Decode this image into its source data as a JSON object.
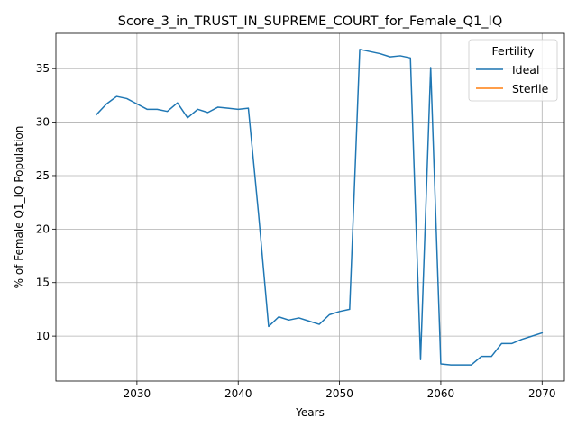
{
  "chart_data": {
    "type": "line",
    "title": "Score_3_in_TRUST_IN_SUPREME_COURT_for_Female_Q1_IQ",
    "xlabel": "Years",
    "ylabel": "% of Female Q1_IQ Population",
    "xlim": [
      2022,
      2072.2
    ],
    "ylim": [
      5.8,
      38.3
    ],
    "xticks": [
      2030,
      2040,
      2050,
      2060,
      2070
    ],
    "yticks": [
      10,
      15,
      20,
      25,
      30,
      35
    ],
    "grid": true,
    "legend": {
      "title": "Fertility",
      "placement": "top-right"
    },
    "series": [
      {
        "name": "Ideal",
        "color": "#1f77b4",
        "x": [
          2026,
          2027,
          2028,
          2029,
          2030,
          2031,
          2032,
          2033,
          2034,
          2035,
          2036,
          2037,
          2038,
          2039,
          2040,
          2041,
          2042,
          2043,
          2044,
          2045,
          2046,
          2047,
          2048,
          2049,
          2050,
          2051,
          2052,
          2053,
          2054,
          2055,
          2056,
          2057,
          2058,
          2059,
          2060,
          2061,
          2062,
          2063,
          2064,
          2065,
          2066,
          2067,
          2068,
          2069,
          2070
        ],
        "y": [
          30.7,
          31.7,
          32.4,
          32.2,
          31.7,
          31.2,
          31.2,
          31.0,
          31.8,
          30.4,
          31.2,
          30.9,
          31.4,
          31.3,
          31.2,
          31.3,
          21.5,
          10.9,
          11.8,
          11.5,
          11.7,
          11.4,
          11.1,
          12.0,
          12.3,
          12.5,
          36.8,
          36.6,
          36.4,
          36.1,
          36.2,
          36.0,
          7.8,
          35.1,
          7.4,
          7.3,
          7.3,
          7.3,
          8.1,
          8.1,
          9.3,
          9.3,
          9.7,
          10.0,
          10.3
        ]
      },
      {
        "name": "Sterile",
        "color": "#ff7f0e",
        "x": [],
        "y": []
      }
    ]
  }
}
